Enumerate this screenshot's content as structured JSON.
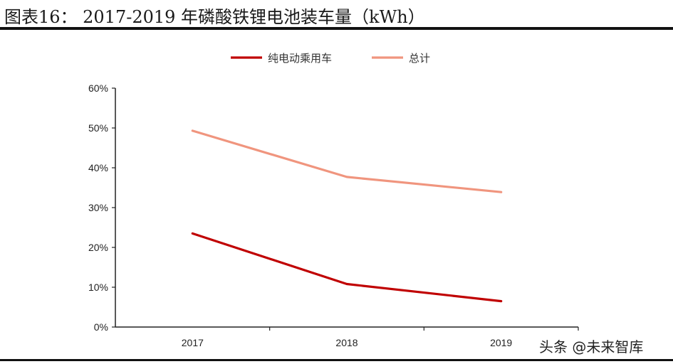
{
  "header": {
    "title": "图表16： 2017-2019 年磷酸铁锂电池装车量（kWh）"
  },
  "watermark": "头条 @未来智库",
  "chart_data": {
    "type": "line",
    "categories": [
      "2017",
      "2018",
      "2019"
    ],
    "series": [
      {
        "name": "纯电动乘用车",
        "color": "#c00000",
        "values": [
          23.5,
          10.8,
          6.5
        ]
      },
      {
        "name": "总计",
        "color": "#f0957e",
        "values": [
          49.3,
          37.7,
          33.9
        ]
      }
    ],
    "yticks": [
      "0%",
      "10%",
      "20%",
      "30%",
      "40%",
      "50%",
      "60%"
    ],
    "ylim": [
      0,
      60
    ],
    "legend_position": "top-center",
    "grid": false
  }
}
